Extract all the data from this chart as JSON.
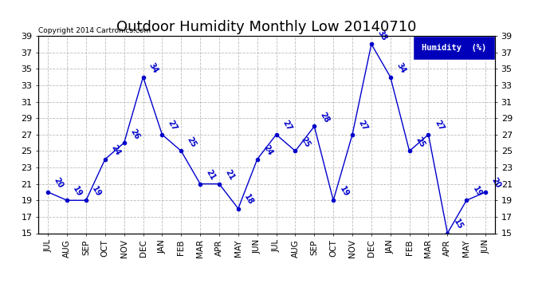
{
  "title": "Outdoor Humidity Monthly Low 20140710",
  "copyright_text": "Copyright 2014 Cartronics.com",
  "legend_label": "Humidity  (%)",
  "categories": [
    "JUL",
    "AUG",
    "SEP",
    "OCT",
    "NOV",
    "DEC",
    "JAN",
    "FEB",
    "MAR",
    "APR",
    "MAY",
    "JUN",
    "JUL",
    "AUG",
    "SEP",
    "OCT",
    "NOV",
    "DEC",
    "JAN",
    "FEB",
    "MAR",
    "APR",
    "MAY",
    "JUN"
  ],
  "values": [
    20,
    19,
    19,
    24,
    26,
    34,
    27,
    25,
    21,
    21,
    18,
    24,
    27,
    25,
    28,
    19,
    27,
    38,
    34,
    25,
    27,
    15,
    19,
    20
  ],
  "ylim": [
    15,
    39
  ],
  "yticks": [
    15,
    17,
    19,
    21,
    23,
    25,
    27,
    29,
    31,
    33,
    35,
    37,
    39
  ],
  "line_color": "#0000CC",
  "bg_color": "#FFFFFF",
  "grid_color": "#BBBBBB",
  "title_fontsize": 13,
  "legend_bg": "#0000BB",
  "legend_text_color": "#FFFFFF"
}
